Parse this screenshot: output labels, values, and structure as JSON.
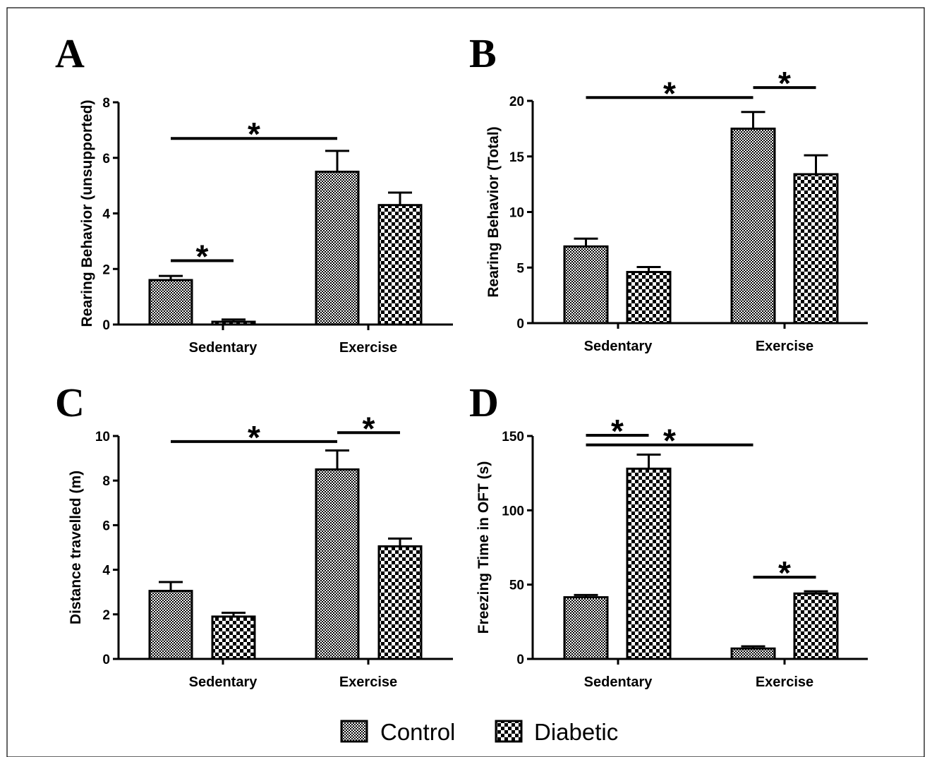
{
  "legend": [
    {
      "name": "Control",
      "pattern": "fine"
    },
    {
      "name": "Diabetic",
      "pattern": "check"
    }
  ],
  "chart_data": [
    {
      "panel": "A",
      "type": "bar",
      "ylabel": "Rearing Behavior (unsupported)",
      "categories": [
        "Sedentary",
        "Exercise"
      ],
      "ylim": [
        0,
        8
      ],
      "yticks": [
        "0",
        "2",
        "4",
        "6",
        "8"
      ],
      "series": [
        {
          "name": "Control",
          "values": [
            1.6,
            5.5
          ],
          "errors": [
            0.15,
            0.75
          ]
        },
        {
          "name": "Diabetic",
          "values": [
            0.1,
            4.3
          ],
          "errors": [
            0.08,
            0.45
          ]
        }
      ],
      "significance": [
        {
          "from": [
            0,
            0
          ],
          "to": [
            0,
            1
          ],
          "y": 2.3,
          "label": "*"
        },
        {
          "from": [
            0,
            0
          ],
          "to": [
            1,
            0
          ],
          "y": 6.7,
          "label": "*"
        }
      ]
    },
    {
      "panel": "B",
      "type": "bar",
      "ylabel": "Rearing Behavior (Total)",
      "categories": [
        "Sedentary",
        "Exercise"
      ],
      "ylim": [
        0,
        20
      ],
      "yticks": [
        "0",
        "5",
        "10",
        "15",
        "20"
      ],
      "series": [
        {
          "name": "Control",
          "values": [
            6.9,
            17.5
          ],
          "errors": [
            0.7,
            1.5
          ]
        },
        {
          "name": "Diabetic",
          "values": [
            4.6,
            13.4
          ],
          "errors": [
            0.45,
            1.7
          ]
        }
      ],
      "significance": [
        {
          "from": [
            0,
            0
          ],
          "to": [
            1,
            0
          ],
          "y": 20.3,
          "label": "*"
        },
        {
          "from": [
            1,
            0
          ],
          "to": [
            1,
            1
          ],
          "y": 21.2,
          "label": "*"
        }
      ]
    },
    {
      "panel": "C",
      "type": "bar",
      "ylabel": "Distance travelled (m)",
      "categories": [
        "Sedentary",
        "Exercise"
      ],
      "ylim": [
        0,
        10
      ],
      "yticks": [
        "0",
        "2",
        "4",
        "6",
        "8",
        "10"
      ],
      "series": [
        {
          "name": "Control",
          "values": [
            3.05,
            8.5
          ],
          "errors": [
            0.4,
            0.85
          ]
        },
        {
          "name": "Diabetic",
          "values": [
            1.9,
            5.05
          ],
          "errors": [
            0.17,
            0.35
          ]
        }
      ],
      "significance": [
        {
          "from": [
            0,
            0
          ],
          "to": [
            1,
            0
          ],
          "y": 9.75,
          "label": "*"
        },
        {
          "from": [
            1,
            0
          ],
          "to": [
            1,
            1
          ],
          "y": 10.15,
          "label": "*"
        }
      ]
    },
    {
      "panel": "D",
      "type": "bar",
      "ylabel": "Freezing Time in OFT (s)",
      "categories": [
        "Sedentary",
        "Exercise"
      ],
      "ylim": [
        0,
        150
      ],
      "yticks": [
        "0",
        "50",
        "100",
        "150"
      ],
      "series": [
        {
          "name": "Control",
          "values": [
            41.5,
            7
          ],
          "errors": [
            1.5,
            1.5
          ]
        },
        {
          "name": "Diabetic",
          "values": [
            128,
            44
          ],
          "errors": [
            9.5,
            1.5
          ]
        }
      ],
      "significance": [
        {
          "from": [
            0,
            0
          ],
          "to": [
            0,
            1
          ],
          "y": 150.5,
          "label": "*"
        },
        {
          "from": [
            0,
            0
          ],
          "to": [
            1,
            0
          ],
          "y": 144,
          "label": "*"
        },
        {
          "from": [
            1,
            0
          ],
          "to": [
            1,
            1
          ],
          "y": 55,
          "label": "*"
        }
      ]
    }
  ]
}
